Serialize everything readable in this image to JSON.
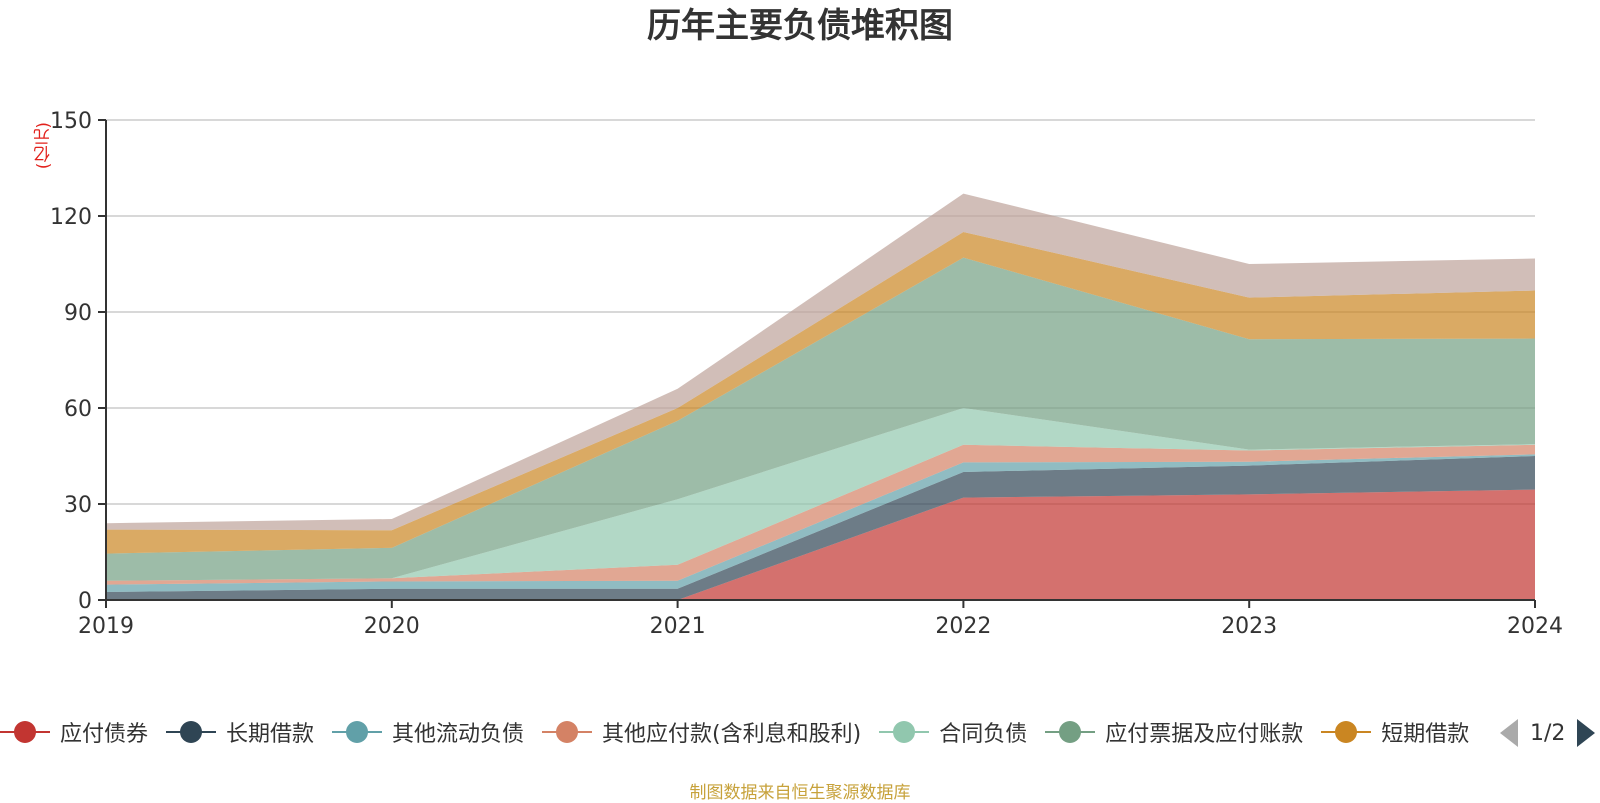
{
  "title": "历年主要负债堆积图",
  "unit": "(亿元)",
  "source": "制图数据来自恒生聚源数据库",
  "pager": {
    "text": "1/2"
  },
  "legend": [
    {
      "label": "应付债券",
      "color": "#c23531"
    },
    {
      "label": "长期借款",
      "color": "#2f4554"
    },
    {
      "label": "其他流动负债",
      "color": "#61a0a8"
    },
    {
      "label": "其他应付款(含利息和股利)",
      "color": "#d48265"
    },
    {
      "label": "合同负债",
      "color": "#91c7ae"
    },
    {
      "label": "应付票据及应付账款",
      "color": "#749f83"
    },
    {
      "label": "短期借款",
      "color": "#ca8622"
    }
  ],
  "chart_data": {
    "type": "area",
    "stacked": true,
    "title": "历年主要负债堆积图",
    "ylabel": "(亿元)",
    "categories": [
      "2019",
      "2020",
      "2021",
      "2022",
      "2023",
      "2024"
    ],
    "ylim": [
      0,
      150
    ],
    "yticks": [
      0,
      30,
      60,
      90,
      120,
      150
    ],
    "grid": true,
    "series": [
      {
        "name": "应付债券",
        "color": "#c23531",
        "values": [
          0,
          0,
          0,
          32,
          33,
          34.5
        ]
      },
      {
        "name": "长期借款",
        "color": "#2f4554",
        "values": [
          2.5,
          3.5,
          3.5,
          8,
          9,
          10.5
        ]
      },
      {
        "name": "其他流动负债",
        "color": "#61a0a8",
        "values": [
          2.3,
          2.3,
          2.5,
          3,
          1.2,
          0.5
        ]
      },
      {
        "name": "其他应付款(含利息和股利)",
        "color": "#d48265",
        "values": [
          1.2,
          1,
          5,
          5.5,
          3.5,
          3
        ]
      },
      {
        "name": "合同负债",
        "color": "#91c7ae",
        "values": [
          0,
          0,
          20.5,
          11.5,
          0.3,
          0.2
        ]
      },
      {
        "name": "应付票据及应付账款",
        "color": "#749f83",
        "values": [
          8.5,
          9.5,
          24.5,
          47,
          34.5,
          33
        ]
      },
      {
        "name": "短期借款",
        "color": "#ca8622",
        "values": [
          7.5,
          5.5,
          4,
          8,
          13,
          15
        ]
      },
      {
        "name": "",
        "color": "#bda29a",
        "values": [
          2,
          3.5,
          6,
          12,
          10.5,
          10
        ]
      }
    ]
  }
}
